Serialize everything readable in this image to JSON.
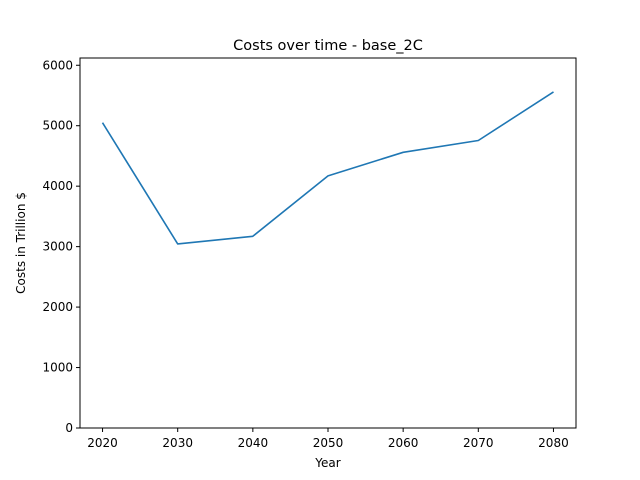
{
  "chart_data": {
    "type": "line",
    "title": "Costs over time - base_2C",
    "xlabel": "Year",
    "ylabel": "Costs in Trillion $",
    "x": [
      2020,
      2030,
      2040,
      2050,
      2060,
      2070,
      2080
    ],
    "series": [
      {
        "values": [
          5050,
          3045,
          3170,
          4170,
          4560,
          4755,
          5560
        ],
        "color": "#1f77b4"
      }
    ],
    "xlim": [
      2017,
      2083
    ],
    "ylim": [
      0,
      6120
    ],
    "xticks": [
      2020,
      2030,
      2040,
      2050,
      2060,
      2070,
      2080
    ],
    "yticks": [
      0,
      1000,
      2000,
      3000,
      4000,
      5000,
      6000
    ],
    "grid": false,
    "legend": "none"
  }
}
